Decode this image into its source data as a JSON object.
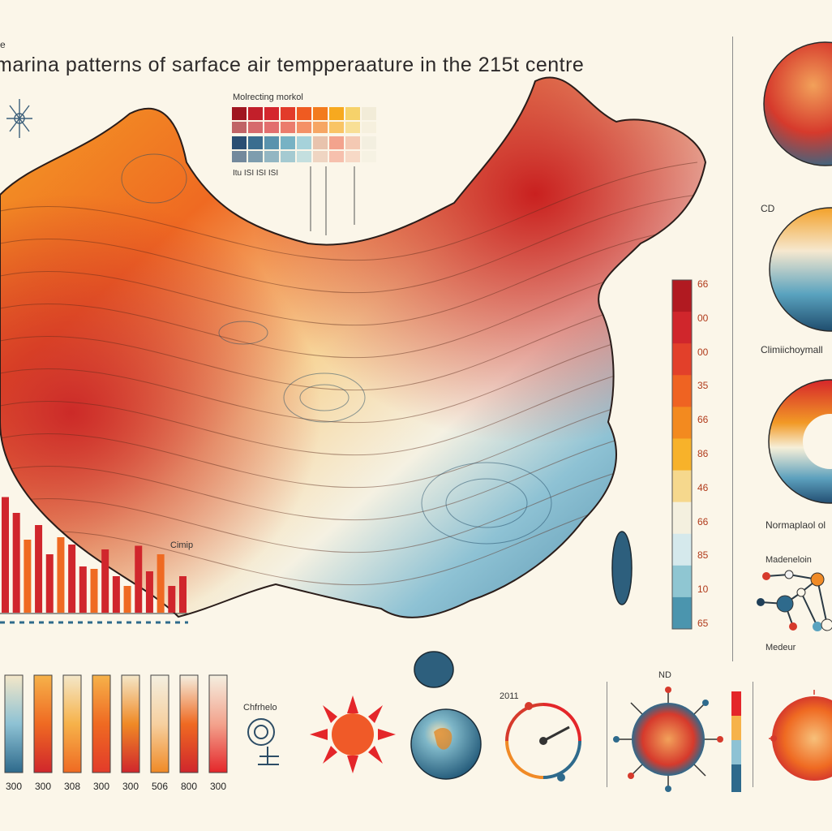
{
  "page": {
    "title": "marina patterns of sarface air tempperaature in the 215t centre",
    "corner_mark": "e"
  },
  "legend_grid": {
    "title": "Molrecting morkol",
    "axis_labels": "Itu ISI ISI ISI",
    "colors_row1": [
      "#a01620",
      "#c21f2a",
      "#d4262d",
      "#e23b2a",
      "#ef5b21",
      "#f37b1d",
      "#f7a91f",
      "#f6d26a",
      "#f2ecd8"
    ],
    "colors_row2": [
      "#2a4f73",
      "#3a6d8f",
      "#5a93ad",
      "#77b2c4",
      "#a6d2da",
      "#e8c3ad",
      "#f3a38d",
      "#f4c9b3",
      "#f3efe0"
    ]
  },
  "color_scale": {
    "ticks": [
      "66",
      "00",
      "00",
      "35",
      "66",
      "86",
      "46",
      "66",
      "85",
      "10",
      "65"
    ],
    "colors": [
      "#b11a21",
      "#d0262c",
      "#e2402a",
      "#ef6322",
      "#f38a1f",
      "#f7b22a",
      "#f6d88d",
      "#f4f0df",
      "#d5e9ec",
      "#8fc6d2",
      "#4b95ae"
    ]
  },
  "right_panel": {
    "label_cd": "CD",
    "label_climate": "Climiichoymall",
    "label_normal": "Normaplaol ol",
    "label_model": "Madeneloin",
    "label_model2": "Medeur"
  },
  "left_bars": {
    "label": "Cimip",
    "values": [
      0.95,
      0.82,
      0.6,
      0.72,
      0.48,
      0.62,
      0.56,
      0.38,
      0.36,
      0.52,
      0.3,
      0.22,
      0.55,
      0.34,
      0.48,
      0.22,
      0.3
    ]
  },
  "bottom": {
    "tube_ticks": [
      "300",
      "300",
      "308",
      "300",
      "300",
      "506",
      "800",
      "300"
    ],
    "label_chemie": "Chfrhelo",
    "label_year": "2011",
    "label_nd": "ND"
  }
}
